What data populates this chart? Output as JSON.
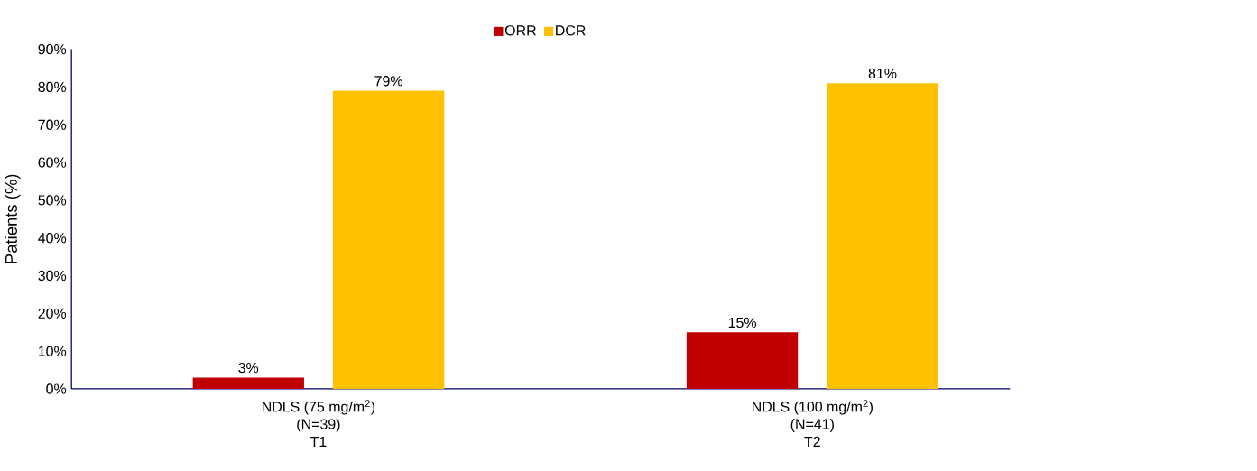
{
  "chart_data": {
    "type": "bar",
    "ylabel": "Patients (%)",
    "categories": [
      "NDLS (75 mg/m$^{2}$)\n(N=39)\nT1",
      "NDLS (100 mg/m$^{2}$)\n(N=41)\nT2"
    ],
    "series": [
      {
        "name": "ORR",
        "color": "#c00000",
        "values": [
          3,
          15
        ],
        "value_labels": [
          "3%",
          "15%"
        ]
      },
      {
        "name": "DCR",
        "color": "#ffc000",
        "values": [
          79,
          81
        ],
        "value_labels": [
          "79%",
          "81%"
        ]
      }
    ],
    "ylim": [
      0,
      90
    ],
    "yticks": [
      {
        "value": 0,
        "label": "0%"
      },
      {
        "value": 10,
        "label": "10%"
      },
      {
        "value": 20,
        "label": "20%"
      },
      {
        "value": 30,
        "label": "30%"
      },
      {
        "value": 40,
        "label": "40%"
      },
      {
        "value": 50,
        "label": "50%"
      },
      {
        "value": 60,
        "label": "60%"
      },
      {
        "value": 70,
        "label": "70%"
      },
      {
        "value": 80,
        "label": "80%"
      },
      {
        "value": 90,
        "label": "90%"
      }
    ],
    "grid": false,
    "legend": "top"
  }
}
